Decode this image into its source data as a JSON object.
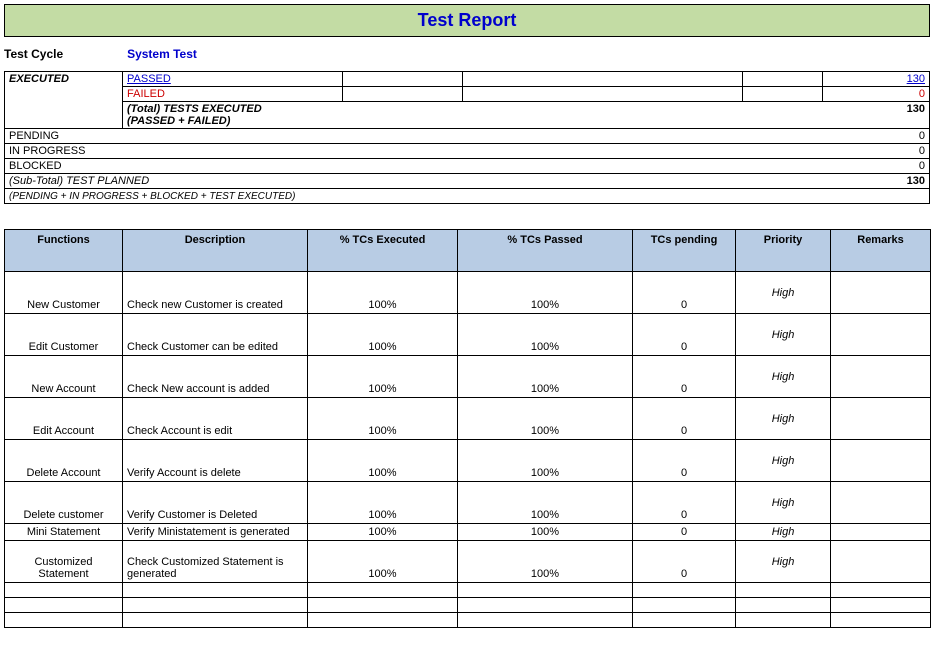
{
  "title": "Test Report",
  "test_cycle": {
    "label": "Test Cycle",
    "value": "System Test"
  },
  "summary": {
    "executed_label": "EXECUTED",
    "passed_label": "PASSED",
    "passed_value": "130",
    "failed_label": "FAILED",
    "failed_value": "0",
    "total_label": "(Total) TESTS EXECUTED",
    "total_sub": "(PASSED + FAILED)",
    "total_value": "130",
    "pending_label": "PENDING",
    "pending_value": "0",
    "inprogress_label": "IN PROGRESS",
    "inprogress_value": "0",
    "blocked_label": "BLOCKED",
    "blocked_value": "0",
    "subtotal_label": "(Sub-Total) TEST PLANNED",
    "subtotal_value": "130",
    "subtotal_sub": "(PENDING + IN PROGRESS + BLOCKED + TEST EXECUTED)"
  },
  "functions_table": {
    "headers": {
      "functions": "Functions",
      "description": "Description",
      "executed": "% TCs Executed",
      "passed": "% TCs Passed",
      "pending": "TCs pending",
      "priority": "Priority",
      "remarks": "Remarks"
    },
    "col_widths": [
      "118",
      "185",
      "150",
      "175",
      "103",
      "95",
      "100"
    ],
    "rows": [
      {
        "tall": true,
        "func": "New Customer",
        "desc": "Check new Customer is created",
        "exec": "100%",
        "pass": "100%",
        "pend": "0",
        "prio": "High",
        "rem": ""
      },
      {
        "tall": true,
        "func": "Edit Customer",
        "desc": "Check Customer can be edited",
        "exec": "100%",
        "pass": "100%",
        "pend": "0",
        "prio": "High",
        "rem": ""
      },
      {
        "tall": true,
        "func": "New Account",
        "desc": "Check New account is added",
        "exec": "100%",
        "pass": "100%",
        "pend": "0",
        "prio": "High",
        "rem": ""
      },
      {
        "tall": true,
        "func": "Edit Account",
        "desc": "Check Account is edit",
        "exec": "100%",
        "pass": "100%",
        "pend": "0",
        "prio": "High",
        "rem": ""
      },
      {
        "tall": true,
        "func": "Delete Account",
        "desc": "Verify Account is delete",
        "exec": "100%",
        "pass": "100%",
        "pend": "0",
        "prio": "High",
        "rem": ""
      },
      {
        "tall": true,
        "func": "Delete customer",
        "desc": "Verify Customer is Deleted",
        "exec": "100%",
        "pass": "100%",
        "pend": "0",
        "prio": "High",
        "rem": ""
      },
      {
        "tall": false,
        "func": "Mini Statement",
        "desc": "Verify Ministatement is generated",
        "exec": "100%",
        "pass": "100%",
        "pend": "0",
        "prio": "High",
        "rem": ""
      },
      {
        "tall": true,
        "func": "Customized Statement",
        "desc": "Check Customized Statement is generated",
        "exec": "100%",
        "pass": "100%",
        "pend": "0",
        "prio": "High",
        "rem": ""
      }
    ],
    "empty_rows": 3
  },
  "colors": {
    "title_bg": "#c3dca4",
    "title_text": "#0000cc",
    "header_bg": "#b8cce4",
    "link_blue": "#0000cc",
    "red": "#cc0000",
    "border": "#000000",
    "bg": "#ffffff"
  }
}
